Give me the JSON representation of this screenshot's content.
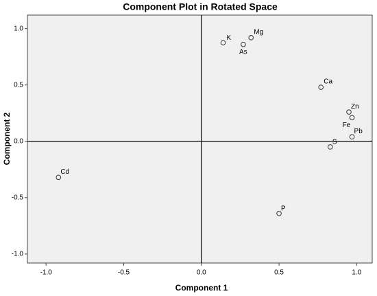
{
  "chart_data": {
    "type": "scatter",
    "title": "Component Plot in Rotated Space",
    "x_label": "Component 1",
    "y_label": "Component 2",
    "xlim": [
      -1.12,
      1.1
    ],
    "ylim": [
      -1.08,
      1.12
    ],
    "xticks": [
      {
        "value": -1,
        "label": "-1.0"
      },
      {
        "value": -0.5,
        "label": "-0.5"
      },
      {
        "value": 0,
        "label": "0.0"
      },
      {
        "value": 0.5,
        "label": "0.5"
      },
      {
        "value": 1,
        "label": "1.0"
      }
    ],
    "yticks": [
      {
        "value": -1,
        "label": "-1.0"
      },
      {
        "value": -0.5,
        "label": "-0.5"
      },
      {
        "value": 0,
        "label": "0.0"
      },
      {
        "value": 0.5,
        "label": "0.5"
      },
      {
        "value": 1,
        "label": "1.0"
      }
    ],
    "labels": [
      "K",
      "Mg",
      "As",
      "Ca",
      "Zn",
      "Fe",
      "Pb",
      "S",
      "Cd",
      "P"
    ],
    "x": [
      0.14,
      0.32,
      0.27,
      0.77,
      0.95,
      0.97,
      0.97,
      0.83,
      -0.92,
      0.5
    ],
    "y": [
      0.875,
      0.92,
      0.86,
      0.48,
      0.26,
      0.21,
      0.04,
      -0.05,
      -0.32,
      -0.64
    ]
  }
}
